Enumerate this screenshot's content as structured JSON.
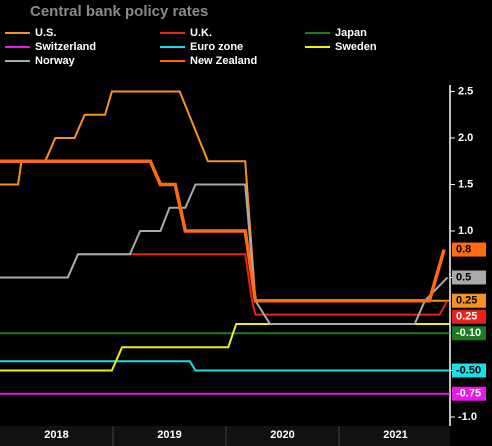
{
  "chart_data": {
    "type": "line",
    "title": "Central bank policy rates",
    "xlim": [
      2018,
      2022
    ],
    "xticks": [
      {
        "value": 2018.5,
        "label": "2018"
      },
      {
        "value": 2019.5,
        "label": "2019"
      },
      {
        "value": 2020.5,
        "label": "2020"
      },
      {
        "value": 2021.5,
        "label": "2021"
      }
    ],
    "ylim": [
      -1.1,
      2.65
    ],
    "yticks": [
      {
        "value": -1,
        "label": "-1.0"
      },
      -0.5,
      0.5,
      {
        "value": 1,
        "label": "1.0"
      },
      1.5,
      {
        "value": 2,
        "label": "2.0"
      },
      2.5
    ],
    "series": [
      {
        "name": "U.S.",
        "color": "#f7941d",
        "width": 2,
        "end_label": "0.25",
        "x": [
          2018,
          2018.16,
          2018.19,
          2018.4,
          2018.49,
          2018.66,
          2018.75,
          2018.93,
          2018.99,
          2019.59,
          2019.84,
          2020.17,
          2020.26,
          2021.98
        ],
        "values": [
          1.5,
          1.5,
          1.75,
          1.75,
          2.0,
          2.0,
          2.25,
          2.25,
          2.5,
          2.5,
          1.75,
          1.75,
          0.25,
          0.25
        ]
      },
      {
        "name": "U.K.",
        "color": "#e8221a",
        "width": 2,
        "end_label": "0.25",
        "x": [
          2018,
          2018.6,
          2018.69,
          2020.17,
          2020.23,
          2020.26,
          2021.89,
          2021.96
        ],
        "values": [
          0.5,
          0.5,
          0.75,
          0.75,
          0.25,
          0.1,
          0.1,
          0.25
        ]
      },
      {
        "name": "Japan",
        "color": "#1e7a1e",
        "width": 2,
        "end_label": "-0.10",
        "x": [
          2018,
          2021.98
        ],
        "values": [
          -0.1,
          -0.1
        ]
      },
      {
        "name": "Switzerland",
        "color": "#e619e6",
        "width": 2,
        "end_label": "-0.75",
        "x": [
          2018,
          2021.98
        ],
        "values": [
          -0.75,
          -0.75
        ]
      },
      {
        "name": "Euro zone",
        "color": "#19e0e6",
        "width": 2,
        "end_label": "-0.50",
        "x": [
          2018,
          2019.68,
          2019.73,
          2021.98
        ],
        "values": [
          -0.4,
          -0.4,
          -0.5,
          -0.5
        ]
      },
      {
        "name": "Sweden",
        "color": "#f0f019",
        "width": 2,
        "x": [
          2018,
          2018.99,
          2019.08,
          2020.02,
          2020.09,
          2021.98
        ],
        "values": [
          -0.5,
          -0.5,
          -0.25,
          -0.25,
          0,
          0
        ]
      },
      {
        "name": "Norway",
        "color": "#aaaaaa",
        "width": 2,
        "end_label": "0.5",
        "x": [
          2018,
          2018.6,
          2018.69,
          2019.15,
          2019.24,
          2019.42,
          2019.5,
          2019.64,
          2019.73,
          2020.17,
          2020.26,
          2020.39,
          2021.67,
          2021.76,
          2021.96
        ],
        "values": [
          0.5,
          0.5,
          0.75,
          0.75,
          1.0,
          1.0,
          1.25,
          1.25,
          1.5,
          1.5,
          0.25,
          0,
          0,
          0.25,
          0.5
        ]
      },
      {
        "name": "New Zealand",
        "color": "#ff6a13",
        "width": 3.5,
        "end_label": "0.8",
        "x": [
          2018,
          2019.33,
          2019.42,
          2019.55,
          2019.64,
          2020.17,
          2020.26,
          2021.8,
          2021.93
        ],
        "values": [
          1.75,
          1.75,
          1.5,
          1.5,
          1.0,
          1.0,
          0.25,
          0.25,
          0.8
        ]
      }
    ]
  }
}
